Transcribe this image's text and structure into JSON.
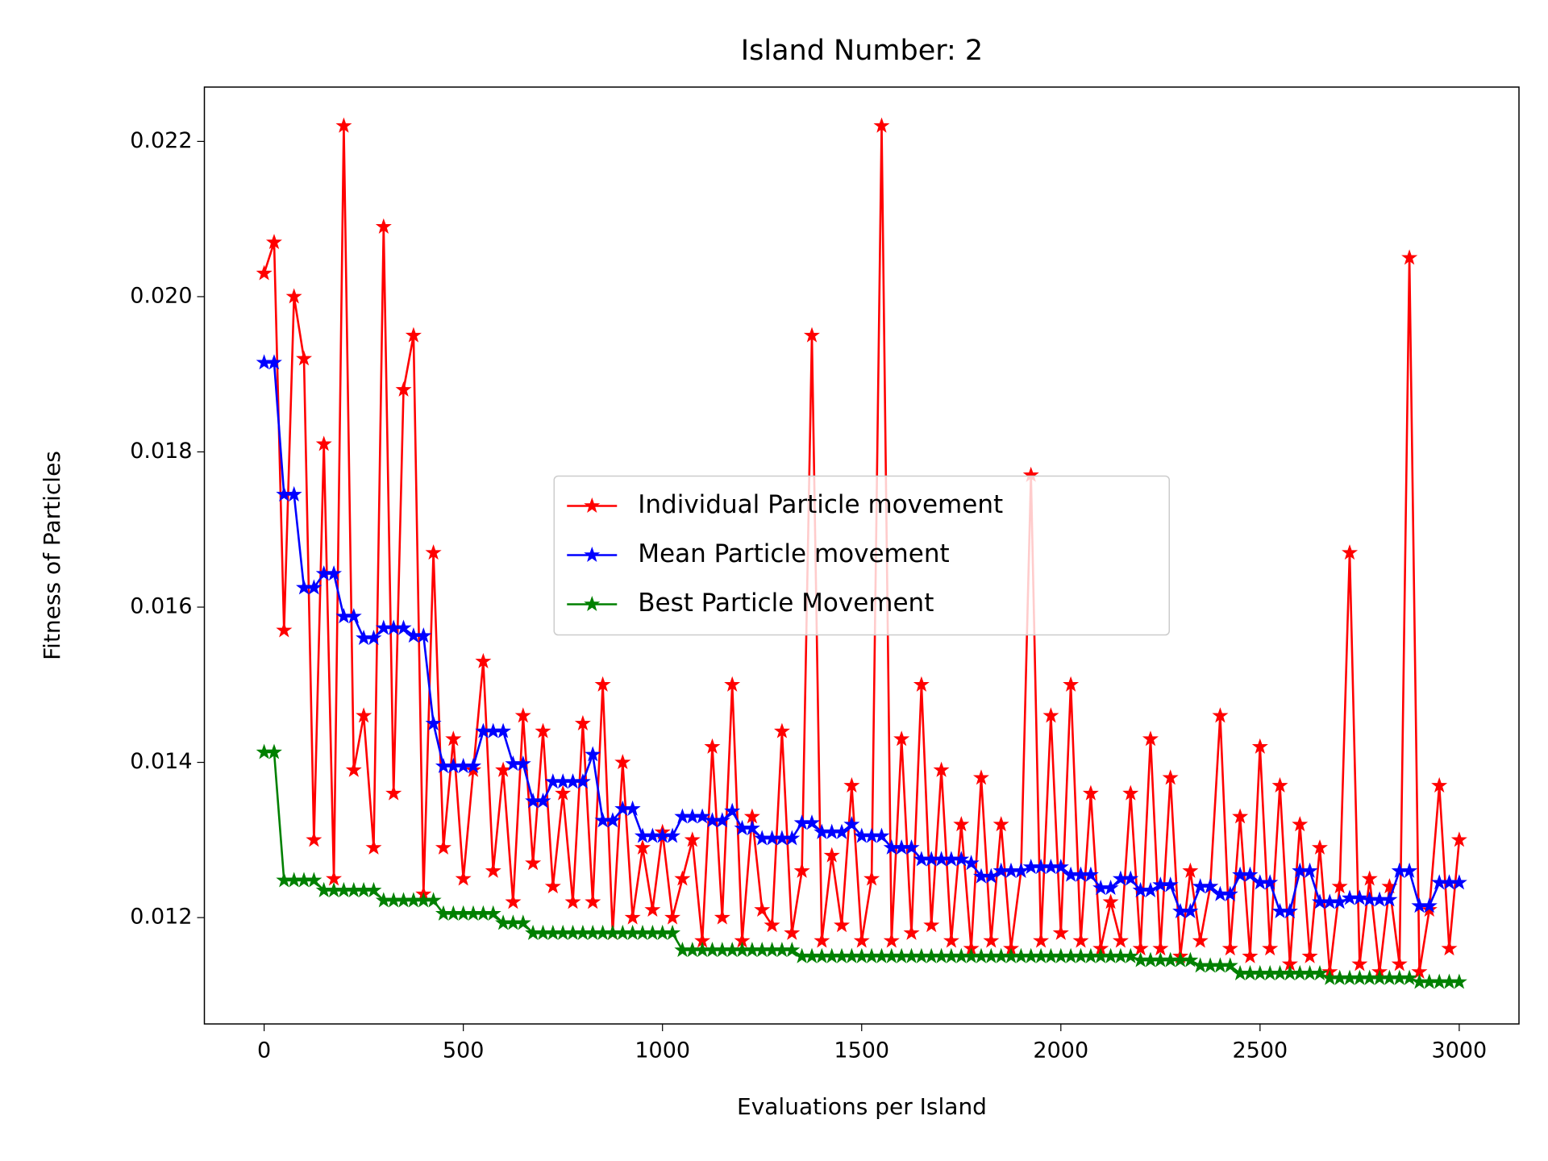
{
  "chart_data": {
    "type": "line",
    "title": "Island Number: 2",
    "xlabel": "Evaluations per Island",
    "ylabel": "Fitness of Particles",
    "x": [
      0,
      25,
      50,
      75,
      100,
      125,
      150,
      175,
      200,
      225,
      250,
      275,
      300,
      325,
      350,
      375,
      400,
      425,
      450,
      475,
      500,
      525,
      550,
      575,
      600,
      625,
      650,
      675,
      700,
      725,
      750,
      775,
      800,
      825,
      850,
      875,
      900,
      925,
      950,
      975,
      1000,
      1025,
      1050,
      1075,
      1100,
      1125,
      1150,
      1175,
      1200,
      1225,
      1250,
      1275,
      1300,
      1325,
      1350,
      1375,
      1400,
      1425,
      1450,
      1475,
      1500,
      1525,
      1550,
      1575,
      1600,
      1625,
      1650,
      1675,
      1700,
      1725,
      1750,
      1775,
      1800,
      1825,
      1850,
      1875,
      1900,
      1925,
      1950,
      1975,
      2000,
      2025,
      2050,
      2075,
      2100,
      2125,
      2150,
      2175,
      2200,
      2225,
      2250,
      2275,
      2300,
      2325,
      2350,
      2375,
      2400,
      2425,
      2450,
      2475,
      2500,
      2525,
      2550,
      2575,
      2600,
      2625,
      2650,
      2675,
      2700,
      2725,
      2750,
      2775,
      2800,
      2825,
      2850,
      2875,
      2900,
      2925,
      2950,
      2975,
      3000
    ],
    "series": [
      {
        "name": "Individual Particle movement",
        "color": "#ff0000",
        "values": [
          0.0203,
          0.0207,
          0.0157,
          0.02,
          0.0192,
          0.013,
          0.0181,
          0.0125,
          0.0222,
          0.0139,
          0.0146,
          0.0129,
          0.0209,
          0.0136,
          0.0188,
          0.0195,
          0.0123,
          0.0167,
          0.0129,
          0.0143,
          0.0125,
          0.0139,
          0.0153,
          0.0126,
          0.0139,
          0.0122,
          0.0146,
          0.0127,
          0.0144,
          0.0124,
          0.0136,
          0.0122,
          0.0145,
          0.0122,
          0.015,
          0.0118,
          0.014,
          0.012,
          0.0129,
          0.0121,
          0.0131,
          0.012,
          0.0125,
          0.013,
          0.0117,
          0.0142,
          0.012,
          0.015,
          0.0117,
          0.0133,
          0.0121,
          0.0119,
          0.0144,
          0.0118,
          0.0126,
          0.0195,
          0.0117,
          0.0128,
          0.0119,
          0.0137,
          0.0117,
          0.0125,
          0.0222,
          0.0117,
          0.0143,
          0.0118,
          0.015,
          0.0119,
          0.0139,
          0.0117,
          0.0132,
          0.0116,
          0.0138,
          0.0117,
          0.0132,
          0.0116,
          0.0126,
          0.0177,
          0.0117,
          0.0146,
          0.0118,
          0.015,
          0.0117,
          0.0136,
          0.0116,
          0.0122,
          0.0117,
          0.0136,
          0.0116,
          0.0143,
          0.0116,
          0.0138,
          0.0115,
          0.0126,
          0.0117,
          0.0124,
          0.0146,
          0.0116,
          0.0133,
          0.0115,
          0.0142,
          0.0116,
          0.0137,
          0.0114,
          0.0132,
          0.0115,
          0.0129,
          0.0113,
          0.0124,
          0.0167,
          0.0114,
          0.0125,
          0.0113,
          0.0124,
          0.0114,
          0.0205,
          0.0113,
          0.0121,
          0.0137,
          0.0116,
          0.013
        ]
      },
      {
        "name": "Mean Particle movement",
        "color": "#0000ff",
        "values": [
          0.01915,
          0.01915,
          0.01745,
          0.01745,
          0.01625,
          0.01625,
          0.01643,
          0.01643,
          0.01588,
          0.01588,
          0.0156,
          0.0156,
          0.01573,
          0.01573,
          0.01573,
          0.01563,
          0.01563,
          0.0145,
          0.01395,
          0.01395,
          0.01395,
          0.01395,
          0.0144,
          0.0144,
          0.0144,
          0.01398,
          0.01398,
          0.0135,
          0.0135,
          0.01375,
          0.01375,
          0.01375,
          0.01375,
          0.0141,
          0.01325,
          0.01325,
          0.0134,
          0.0134,
          0.01305,
          0.01305,
          0.01305,
          0.01305,
          0.0133,
          0.0133,
          0.0133,
          0.01325,
          0.01325,
          0.01337,
          0.01315,
          0.01315,
          0.01302,
          0.01302,
          0.01302,
          0.01302,
          0.01322,
          0.01322,
          0.0131,
          0.0131,
          0.0131,
          0.0132,
          0.01305,
          0.01305,
          0.01305,
          0.0129,
          0.0129,
          0.0129,
          0.01275,
          0.01275,
          0.01275,
          0.01275,
          0.01275,
          0.0127,
          0.01253,
          0.01253,
          0.0126,
          0.0126,
          0.0126,
          0.01265,
          0.01265,
          0.01265,
          0.01265,
          0.01255,
          0.01255,
          0.01255,
          0.01238,
          0.01238,
          0.0125,
          0.0125,
          0.01235,
          0.01235,
          0.01242,
          0.01242,
          0.01208,
          0.01208,
          0.0124,
          0.0124,
          0.0123,
          0.0123,
          0.01255,
          0.01255,
          0.01245,
          0.01245,
          0.01208,
          0.01208,
          0.0126,
          0.0126,
          0.0122,
          0.0122,
          0.0122,
          0.01225,
          0.01225,
          0.01223,
          0.01223,
          0.01223,
          0.0126,
          0.0126,
          0.01215,
          0.01215,
          0.01245,
          0.01245,
          0.01245
        ]
      },
      {
        "name": "Best Particle Movement",
        "color": "#008000",
        "values": [
          0.01413,
          0.01413,
          0.01248,
          0.01248,
          0.01248,
          0.01248,
          0.01235,
          0.01235,
          0.01235,
          0.01235,
          0.01235,
          0.01235,
          0.01222,
          0.01222,
          0.01222,
          0.01222,
          0.01222,
          0.01222,
          0.01205,
          0.01205,
          0.01205,
          0.01205,
          0.01205,
          0.01205,
          0.01193,
          0.01193,
          0.01193,
          0.0118,
          0.0118,
          0.0118,
          0.0118,
          0.0118,
          0.0118,
          0.0118,
          0.0118,
          0.0118,
          0.0118,
          0.0118,
          0.0118,
          0.0118,
          0.0118,
          0.0118,
          0.01158,
          0.01158,
          0.01158,
          0.01158,
          0.01158,
          0.01158,
          0.01158,
          0.01158,
          0.01158,
          0.01158,
          0.01158,
          0.01158,
          0.0115,
          0.0115,
          0.0115,
          0.0115,
          0.0115,
          0.0115,
          0.0115,
          0.0115,
          0.0115,
          0.0115,
          0.0115,
          0.0115,
          0.0115,
          0.0115,
          0.0115,
          0.0115,
          0.0115,
          0.0115,
          0.0115,
          0.0115,
          0.0115,
          0.0115,
          0.0115,
          0.0115,
          0.0115,
          0.0115,
          0.0115,
          0.0115,
          0.0115,
          0.0115,
          0.0115,
          0.0115,
          0.0115,
          0.0115,
          0.01145,
          0.01145,
          0.01145,
          0.01145,
          0.01145,
          0.01145,
          0.01138,
          0.01138,
          0.01138,
          0.01138,
          0.01128,
          0.01128,
          0.01128,
          0.01128,
          0.01128,
          0.01128,
          0.01128,
          0.01128,
          0.01128,
          0.01122,
          0.01122,
          0.01122,
          0.01122,
          0.01122,
          0.01122,
          0.01122,
          0.01122,
          0.01122,
          0.01117,
          0.01117,
          0.01117,
          0.01117,
          0.01117
        ]
      }
    ],
    "xlim": [
      -150,
      3150
    ],
    "xticks": [
      0,
      500,
      1000,
      1500,
      2000,
      2500,
      3000
    ],
    "ylim": [
      0.01063,
      0.0227
    ],
    "yticks": [
      0.012,
      0.014,
      0.016,
      0.018,
      {
        "value": 0.02,
        "label": "0.020"
      },
      0.022
    ],
    "legend": "center",
    "grid": false
  }
}
